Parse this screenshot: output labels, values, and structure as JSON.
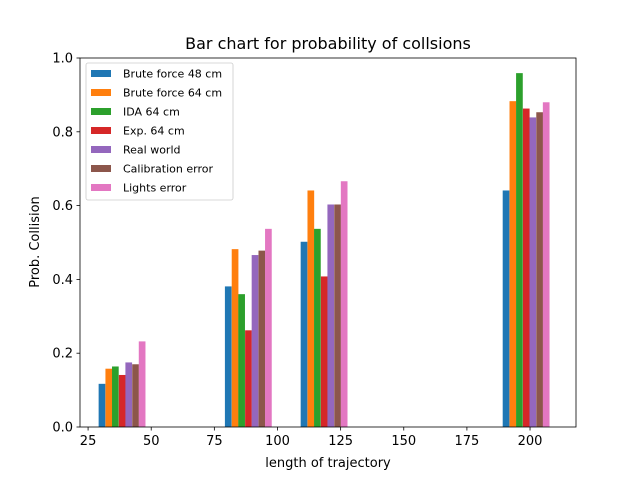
{
  "chart_data": {
    "type": "bar",
    "title": "Bar chart for probability of collsions",
    "xlabel": "length of trajectory",
    "ylabel": "Prob. Collision",
    "xlim": [
      21.8,
      218.2
    ],
    "ylim": [
      0,
      1.0
    ],
    "xticks": [
      25,
      50,
      75,
      100,
      125,
      150,
      175,
      200
    ],
    "yticks": [
      0.0,
      0.2,
      0.4,
      0.6,
      0.8,
      1.0
    ],
    "xtick_labels": [
      "25",
      "50",
      "75",
      "100",
      "125",
      "150",
      "175",
      "200"
    ],
    "ytick_labels": [
      "0.0",
      "0.2",
      "0.4",
      "0.6",
      "0.8",
      "1.0"
    ],
    "legend_position": "top-left",
    "grid": false,
    "bar_width": 2.65,
    "series": [
      {
        "name": "Brute force 48 cm",
        "color": "#1f77b4",
        "x": [
          30.5,
          80.5,
          110.5,
          190.5
        ],
        "values": [
          0.117,
          0.381,
          0.502,
          0.641
        ]
      },
      {
        "name": "Brute force 64 cm",
        "color": "#ff7f0e",
        "x": [
          33.2,
          83.2,
          113.2,
          193.2
        ],
        "values": [
          0.158,
          0.482,
          0.641,
          0.883
        ]
      },
      {
        "name": "IDA 64 cm",
        "color": "#2ca02c",
        "x": [
          35.8,
          85.8,
          115.8,
          195.8
        ],
        "values": [
          0.164,
          0.36,
          0.537,
          0.959
        ]
      },
      {
        "name": "Exp. 64 cm",
        "color": "#d62728",
        "x": [
          38.5,
          88.5,
          118.5,
          198.5
        ],
        "values": [
          0.141,
          0.262,
          0.408,
          0.863
        ]
      },
      {
        "name": "Real world",
        "color": "#9467bd",
        "x": [
          41.1,
          91.1,
          121.1,
          201.1
        ],
        "values": [
          0.175,
          0.466,
          0.603,
          0.839
        ]
      },
      {
        "name": "Calibration error",
        "color": "#8c564b",
        "x": [
          43.8,
          93.8,
          123.8,
          203.8
        ],
        "values": [
          0.17,
          0.478,
          0.603,
          0.853
        ]
      },
      {
        "name": "Lights error",
        "color": "#e377c2",
        "x": [
          46.4,
          96.4,
          126.4,
          206.4
        ],
        "values": [
          0.232,
          0.537,
          0.666,
          0.88
        ]
      }
    ]
  }
}
